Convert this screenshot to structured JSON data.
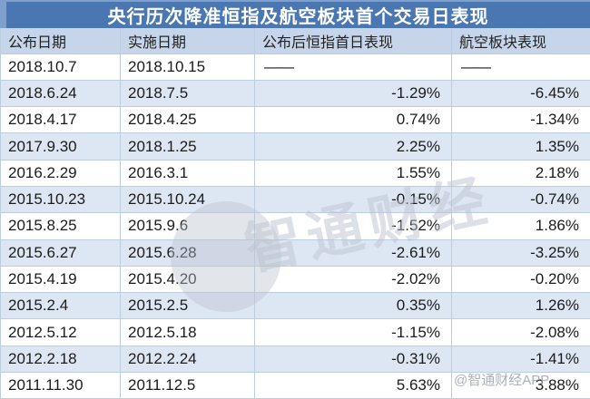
{
  "title": "央行历次降准恒指及航空板块首个交易日表现",
  "chart_data": {
    "type": "table",
    "title": "央行历次降准恒指及航空板块首个交易日表现",
    "columns": [
      "公布日期",
      "实施日期",
      "公布后恒指首日表现",
      "航空板块表现"
    ],
    "rows": [
      [
        "2018.10.7",
        "2018.10.15",
        "——",
        "——"
      ],
      [
        "2018.6.24",
        "2018.7.5",
        "-1.29%",
        "-6.45%"
      ],
      [
        "2018.4.17",
        "2018.4.25",
        "0.74%",
        "-1.34%"
      ],
      [
        "2017.9.30",
        "2018.1.25",
        "2.25%",
        "1.35%"
      ],
      [
        "2016.2.29",
        "2016.3.1",
        "1.55%",
        "2.18%"
      ],
      [
        "2015.10.23",
        "2015.10.24",
        "-0.15%",
        "-0.74%"
      ],
      [
        "2015.8.25",
        "2015.9.6",
        "-1.52%",
        "1.86%"
      ],
      [
        "2015.6.27",
        "2015.6.28",
        "-2.61%",
        "-3.25%"
      ],
      [
        "2015.4.19",
        "2015.4.20",
        "-2.02%",
        "-0.20%"
      ],
      [
        "2015.2.4",
        "2015.2.5",
        "0.35%",
        "1.26%"
      ],
      [
        "2012.5.12",
        "2012.5.18",
        "-1.15%",
        "-2.08%"
      ],
      [
        "2012.2.18",
        "2012.2.24",
        "-0.31%",
        "-1.41%"
      ],
      [
        "2011.11.30",
        "2011.12.5",
        "5.63%",
        "3.88%"
      ]
    ]
  },
  "watermark": {
    "center_text": "智通财经",
    "corner_text": "@智通财经APP"
  },
  "colors": {
    "title_bar": "#4a77b2",
    "title_bar_edge": "#7fa0cd",
    "header_bg": "#c6d5e9",
    "alt_row_bg": "#dce7f3",
    "grid_line": "#bccde0",
    "text": "#1b1b1b"
  }
}
